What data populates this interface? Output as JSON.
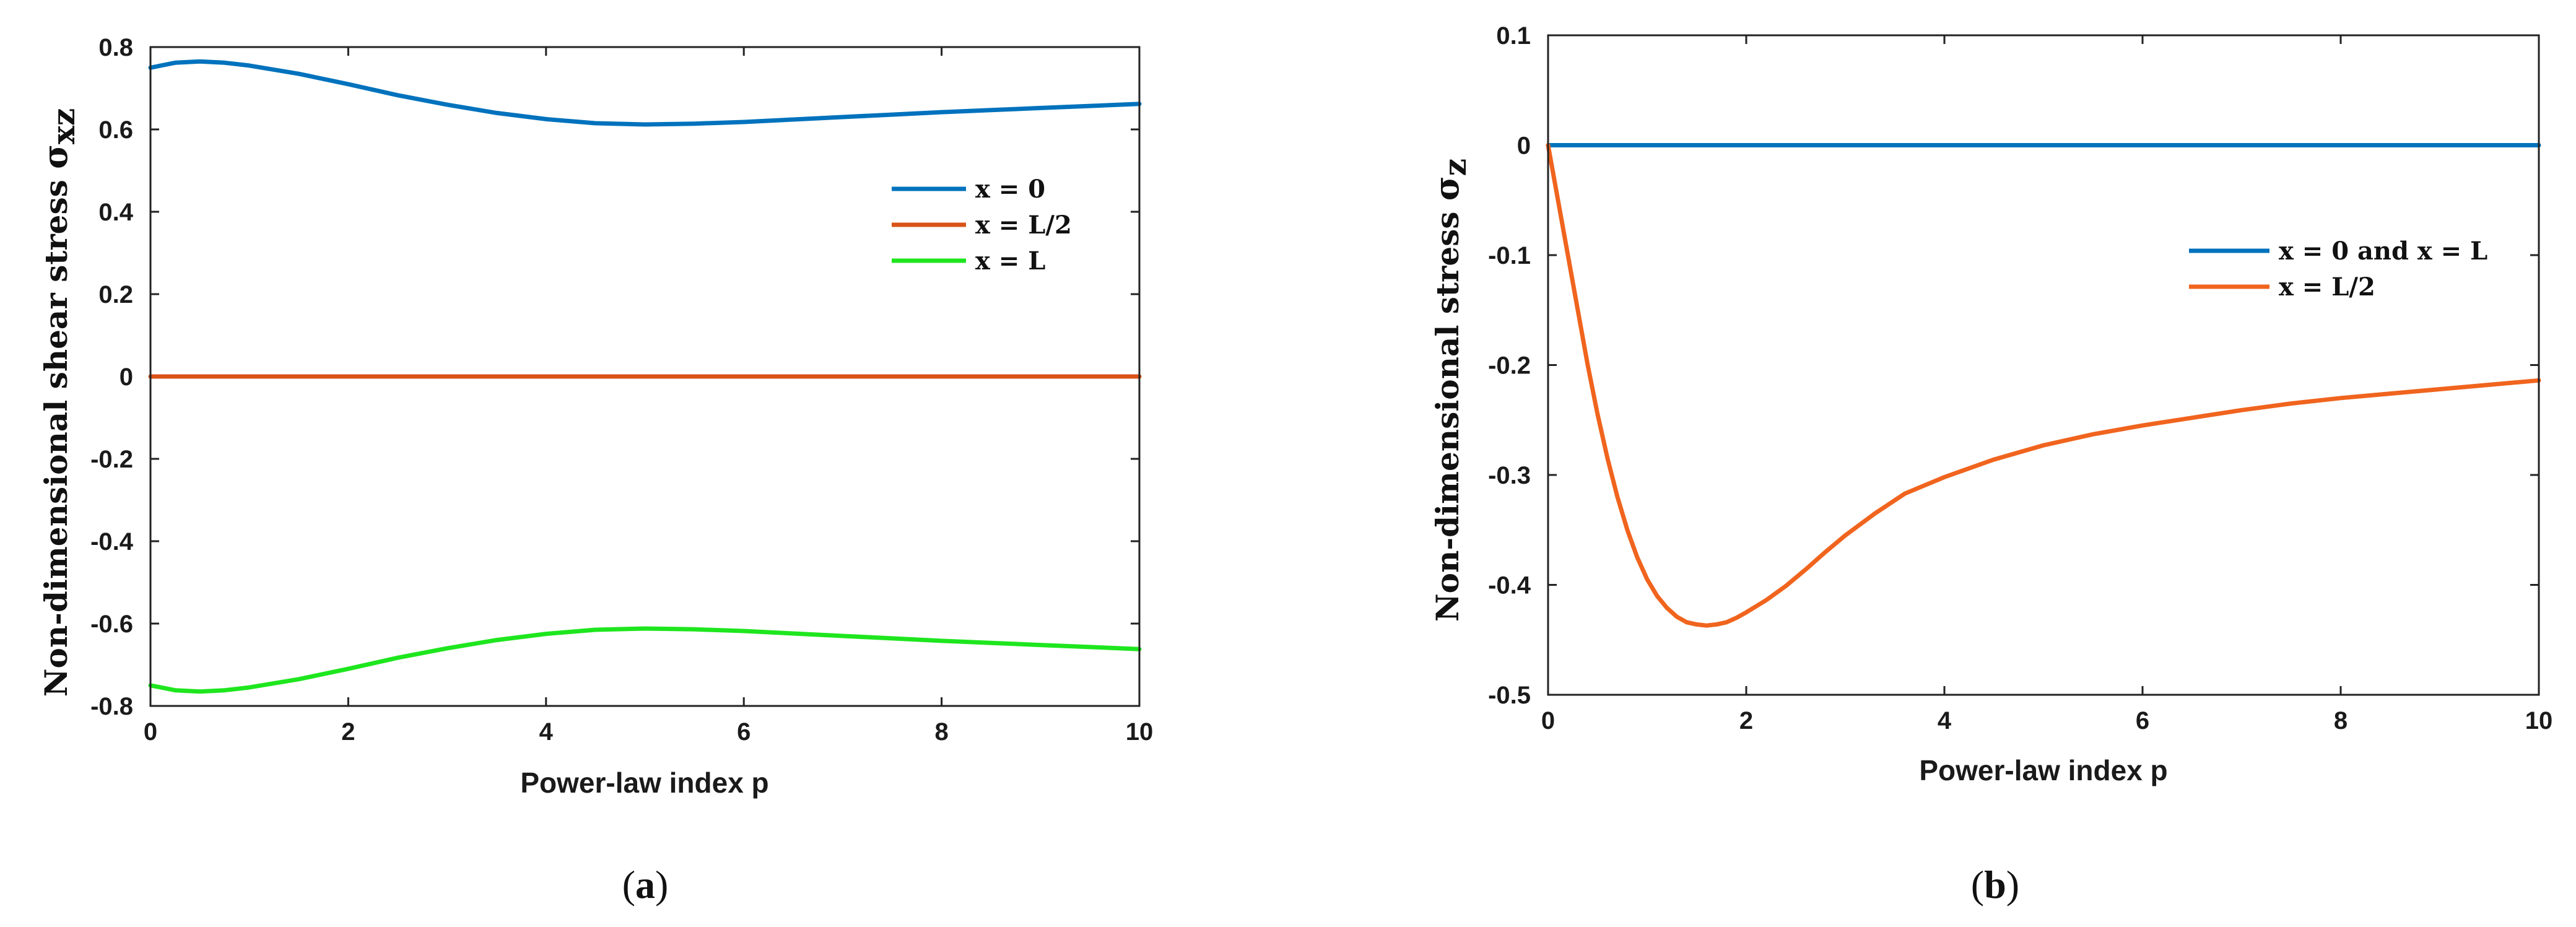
{
  "chart_data": [
    {
      "type": "line",
      "panel": "a",
      "caption_open": "(",
      "caption_letter": "a",
      "caption_close": ")",
      "xlabel": "Power-law index p",
      "ylabel": "Non-dimensional shear stress ",
      "ylabel_symbol": "σ",
      "ylabel_subscript": "xz",
      "xlim": [
        0,
        10
      ],
      "ylim": [
        -0.8,
        0.8
      ],
      "xticks": [
        0,
        2,
        4,
        6,
        8,
        10
      ],
      "xtick_labels": [
        "0",
        "2",
        "4",
        "6",
        "8",
        "10"
      ],
      "yticks": [
        0.8,
        0.6,
        0.4,
        0.2,
        0,
        -0.2,
        -0.4,
        -0.6,
        -0.8
      ],
      "ytick_labels": [
        "0.8",
        "0.6",
        "0.4",
        "0.2",
        "0",
        "-0.2",
        "-0.4",
        "-0.6",
        "-0.8"
      ],
      "legend_position": "upper-right",
      "series": [
        {
          "name": "x = 0",
          "color": "#0072BD",
          "x": [
            0,
            0.25,
            0.5,
            0.75,
            1,
            1.5,
            2,
            2.5,
            3,
            3.5,
            4,
            4.5,
            5,
            5.5,
            6,
            6.5,
            7,
            7.5,
            8,
            8.5,
            9,
            9.5,
            10
          ],
          "y": [
            0.75,
            0.762,
            0.765,
            0.762,
            0.755,
            0.735,
            0.71,
            0.683,
            0.66,
            0.64,
            0.625,
            0.615,
            0.612,
            0.614,
            0.618,
            0.624,
            0.63,
            0.636,
            0.642,
            0.647,
            0.652,
            0.657,
            0.662
          ]
        },
        {
          "name": "x = L/2",
          "color": "#D95319",
          "x": [
            0,
            10
          ],
          "y": [
            0,
            0
          ]
        },
        {
          "name": "x = L",
          "color": "#1EE61E",
          "x": [
            0,
            0.25,
            0.5,
            0.75,
            1,
            1.5,
            2,
            2.5,
            3,
            3.5,
            4,
            4.5,
            5,
            5.5,
            6,
            6.5,
            7,
            7.5,
            8,
            8.5,
            9,
            9.5,
            10
          ],
          "y": [
            -0.75,
            -0.762,
            -0.765,
            -0.762,
            -0.755,
            -0.735,
            -0.71,
            -0.683,
            -0.66,
            -0.64,
            -0.625,
            -0.615,
            -0.612,
            -0.614,
            -0.618,
            -0.624,
            -0.63,
            -0.636,
            -0.642,
            -0.647,
            -0.652,
            -0.657,
            -0.662
          ]
        }
      ]
    },
    {
      "type": "line",
      "panel": "b",
      "caption_open": "(",
      "caption_letter": "b",
      "caption_close": ")",
      "xlabel": "Power-law index p",
      "ylabel": "Non-dimensional stress ",
      "ylabel_symbol": "σ",
      "ylabel_subscript": "z",
      "xlim": [
        0,
        10
      ],
      "ylim": [
        -0.5,
        0.1
      ],
      "xticks": [
        0,
        2,
        4,
        6,
        8,
        10
      ],
      "xtick_labels": [
        "0",
        "2",
        "4",
        "6",
        "8",
        "10"
      ],
      "yticks": [
        0.1,
        0,
        -0.1,
        -0.2,
        -0.3,
        -0.4,
        -0.5
      ],
      "ytick_labels": [
        "0.1",
        "0",
        "-0.1",
        "-0.2",
        "-0.3",
        "-0.4",
        "-0.5"
      ],
      "legend_position": "upper-right",
      "series": [
        {
          "name": "x = 0 and x = L",
          "color": "#0072BD",
          "x": [
            0,
            10
          ],
          "y": [
            0,
            0
          ]
        },
        {
          "name": "x = L/2",
          "color": "#F0641E",
          "x": [
            0,
            0.1,
            0.2,
            0.3,
            0.4,
            0.5,
            0.6,
            0.7,
            0.8,
            0.9,
            1.0,
            1.1,
            1.2,
            1.3,
            1.4,
            1.5,
            1.6,
            1.7,
            1.8,
            1.9,
            2.0,
            2.2,
            2.4,
            2.6,
            2.8,
            3.0,
            3.3,
            3.6,
            4.0,
            4.5,
            5.0,
            5.5,
            6.0,
            6.5,
            7.0,
            7.5,
            8.0,
            8.5,
            9.0,
            9.5,
            10.0
          ],
          "y": [
            0,
            -0.05,
            -0.1,
            -0.15,
            -0.2,
            -0.245,
            -0.285,
            -0.32,
            -0.35,
            -0.375,
            -0.395,
            -0.41,
            -0.421,
            -0.429,
            -0.434,
            -0.436,
            -0.437,
            -0.436,
            -0.434,
            -0.43,
            -0.425,
            -0.414,
            -0.401,
            -0.386,
            -0.37,
            -0.355,
            -0.335,
            -0.317,
            -0.302,
            -0.286,
            -0.273,
            -0.263,
            -0.255,
            -0.248,
            -0.241,
            -0.235,
            -0.23,
            -0.226,
            -0.222,
            -0.218,
            -0.214
          ]
        }
      ]
    }
  ]
}
